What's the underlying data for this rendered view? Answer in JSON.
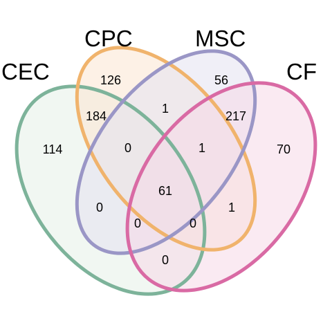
{
  "diagram": {
    "type": "venn-4",
    "sets": [
      {
        "key": "CEC",
        "label": "CEC",
        "stroke": "#7db39a",
        "fill": "#e6f0e8"
      },
      {
        "key": "CPC",
        "label": "CPC",
        "stroke": "#f0b36c",
        "fill": "#fbe6d2"
      },
      {
        "key": "MSC",
        "label": "MSC",
        "stroke": "#9a96c6",
        "fill": "#e4e2f0"
      },
      {
        "key": "CF",
        "label": "CF",
        "stroke": "#d96aa4",
        "fill": "#f6d8e8"
      }
    ],
    "regions": {
      "CEC_only": "114",
      "CPC_only": "126",
      "MSC_only": "56",
      "CF_only": "70",
      "CEC_CPC": "184",
      "CPC_MSC": "1",
      "MSC_CF": "217",
      "CEC_CPC_MSC": "0",
      "CPC_MSC_CF": "1",
      "all": "61",
      "CEC_MSC": "0",
      "CPC_CF": "1",
      "CEC_MSC_CF": "0",
      "CEC_CPC_CF": "0",
      "CEC_CF": "0"
    }
  }
}
